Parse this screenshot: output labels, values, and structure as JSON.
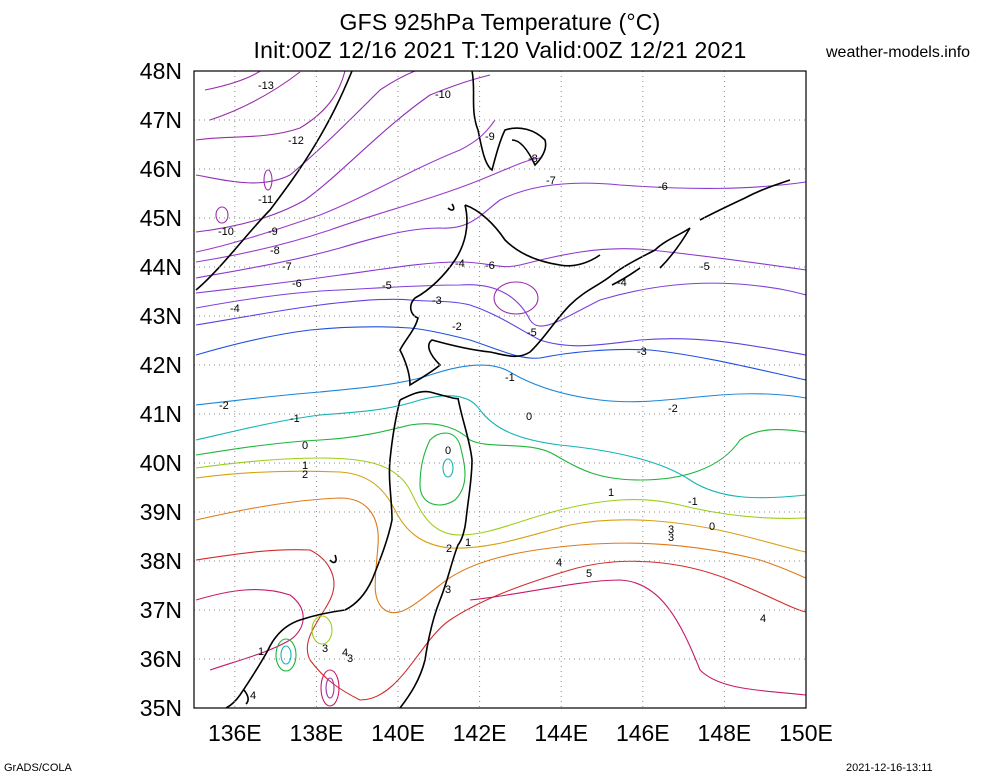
{
  "header": {
    "title_line1": "GFS 925hPa Temperature (°C)",
    "title_line2": "Init:00Z 12/16 2021 T:120 Valid:00Z 12/21 2021",
    "site": "weather-models.info"
  },
  "footer": {
    "credit": "GrADS/COLA",
    "timestamp": "2021-12-16-13:11"
  },
  "map": {
    "lat_labels": [
      "48N",
      "47N",
      "46N",
      "45N",
      "44N",
      "43N",
      "42N",
      "41N",
      "40N",
      "39N",
      "38N",
      "37N",
      "36N",
      "35N"
    ],
    "lon_labels": [
      "136E",
      "138E",
      "140E",
      "142E",
      "144E",
      "146E",
      "148E",
      "150E"
    ],
    "contour_labels": [
      "-13",
      "-12",
      "-11",
      "-10",
      "-10",
      "-9",
      "-9",
      "-8",
      "-8",
      "-7",
      "-7",
      "-6",
      "-6",
      "-6",
      "-5",
      "-5",
      "-5",
      "-4",
      "-4",
      "-4",
      "-3",
      "-3",
      "-2",
      "-2",
      "-2",
      "-1",
      "-1",
      "-1",
      "0",
      "0",
      "0",
      "0",
      "1",
      "1",
      "1",
      "1",
      "2",
      "2",
      "3",
      "3",
      "3",
      "3",
      "3",
      "4",
      "4",
      "4",
      "4",
      "5"
    ],
    "colors": {
      "m13": "#9a2ea8",
      "m10": "#8f2fb6",
      "m8": "#9b3bc9",
      "m6": "#8a38d0",
      "m5": "#7e40d8",
      "m4": "#6040e0",
      "m3": "#1f4fe0",
      "m2": "#1c86d8",
      "m1": "#14b4b4",
      "zero": "#1fb43a",
      "p1": "#9ccf18",
      "p2": "#d7a012",
      "p3": "#e07a1a",
      "p4": "#d22c2c",
      "p5": "#c81a6a",
      "coast": "#000000",
      "grid": "#8a8a8a"
    }
  }
}
